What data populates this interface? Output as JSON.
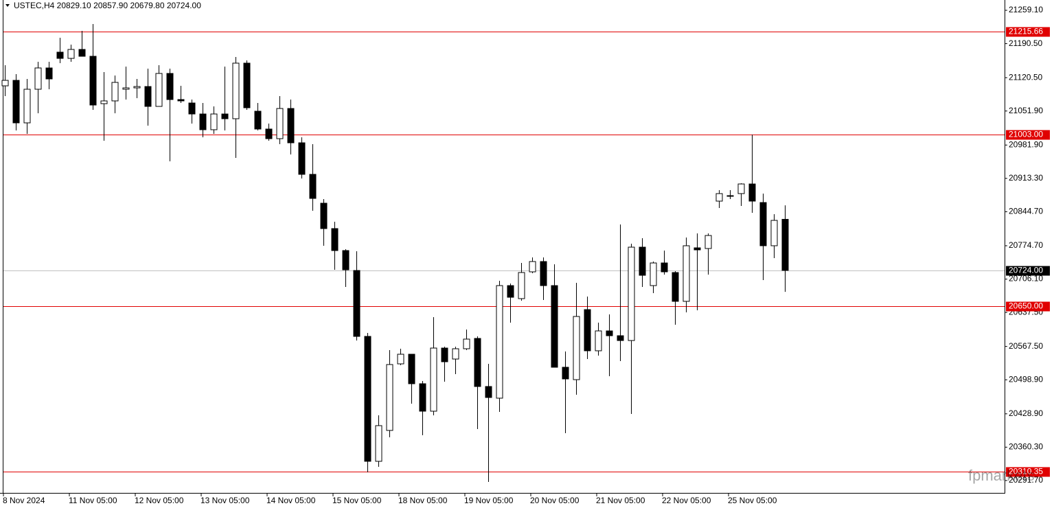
{
  "chart_data": {
    "type": "candlestick",
    "title": "USTEC,H4  20829.10 20857.90 20679.80 20724.00",
    "categories": [
      "8 Nov 2024",
      null,
      null,
      null,
      null,
      null,
      "11 Nov 05:00",
      null,
      null,
      null,
      null,
      null,
      "12 Nov 05:00",
      null,
      null,
      null,
      null,
      null,
      "13 Nov 05:00",
      null,
      null,
      null,
      null,
      null,
      "14 Nov 05:00",
      null,
      null,
      null,
      null,
      null,
      "15 Nov 05:00",
      null,
      null,
      null,
      null,
      null,
      "18 Nov 05:00",
      null,
      null,
      null,
      null,
      null,
      "19 Nov 05:00",
      null,
      null,
      null,
      null,
      null,
      "20 Nov 05:00",
      null,
      null,
      null,
      null,
      null,
      "21 Nov 05:00",
      null,
      null,
      null,
      null,
      null,
      "22 Nov 05:00",
      null,
      null,
      null,
      null,
      null,
      "25 Nov 05:00",
      null,
      null,
      null,
      null,
      null
    ],
    "open": [
      21103.7,
      21115.0,
      21027.5,
      21096.7,
      21140.5,
      21173.0,
      21160.2,
      21178.6,
      21164.5,
      21067.0,
      21072.7,
      21096.7,
      21099.5,
      21102.3,
      21061.4,
      21129.2,
      21075.5,
      21068.4,
      21045.8,
      21013.4,
      21045.8,
      21036.0,
      21150.4,
      21051.5,
      21014.8,
      20995.0,
      21057.1,
      20986.5,
      20921.6,
      20862.2,
      20810.0,
      20764.8,
      20723.8,
      20588.2,
      20331.2,
      20394.7,
      20531.7,
      20551.5,
      20490.8,
      20434.3,
      20564.2,
      20541.6,
      20562.8,
      20584.0,
      20485.1,
      20461.1,
      20692.7,
      20665.9,
      20721.0,
      20742.2,
      20692.7,
      20524.7,
      20499.2,
      20643.3,
      20558.6,
      20599.5,
      20589.6,
      20579.7,
      20771.8,
      20692.7,
      20739.3,
      20719.6,
      20660.3,
      20770.4,
      20769.0,
      20866.5,
      20876.4,
      20882.0,
      20901.8,
      20863.6,
      20774.7,
      20829.1
    ],
    "high": [
      21146.1,
      21127.8,
      21117.9,
      21153.2,
      21153.2,
      21202.6,
      21188.5,
      21216.7,
      21230.9,
      21132.0,
      21124.9,
      21143.3,
      21117.9,
      21139.1,
      21146.1,
      21139.1,
      21103.7,
      21075.5,
      21068.4,
      21061.4,
      21143.3,
      21163.1,
      21156.0,
      21068.4,
      21026.1,
      21082.6,
      21075.5,
      20997.8,
      20983.7,
      20870.7,
      20824.1,
      20767.6,
      20763.4,
      20595.3,
      20425.8,
      20560.0,
      20562.8,
      20551.5,
      20496.4,
      20627.8,
      20567.0,
      20567.0,
      20602.3,
      20588.2,
      20531.7,
      20702.6,
      20697.0,
      20739.3,
      20750.6,
      20750.6,
      20736.5,
      20557.2,
      20698.4,
      20670.1,
      20616.5,
      20633.4,
      20818.4,
      20778.9,
      20790.2,
      20742.2,
      20764.8,
      20722.4,
      20791.6,
      20800.1,
      20800.1,
      20889.1,
      20889.1,
      20903.2,
      21003.5,
      20882.0,
      20839.6,
      20857.9
    ],
    "low": [
      21082.6,
      21011.9,
      21004.9,
      21047.3,
      21096.7,
      21150.4,
      21153.2,
      21164.5,
      21054.3,
      20990.8,
      21047.3,
      21075.5,
      21078.3,
      21021.8,
      21061.4,
      20948.4,
      21068.4,
      21026.1,
      20997.8,
      21004.9,
      21011.9,
      20955.4,
      21054.3,
      21011.9,
      20990.8,
      20983.7,
      20962.5,
      20913.1,
      20846.7,
      20774.7,
      20725.2,
      20689.9,
      20579.7,
      20308.6,
      20319.9,
      20380.6,
      20528.9,
      20449.8,
      20384.8,
      20425.8,
      20495.0,
      20510.5,
      20560.0,
      20397.5,
      20288.8,
      20432.9,
      20616.5,
      20661.7,
      20718.2,
      20663.1,
      20524.7,
      20389.1,
      20468.2,
      20541.6,
      20548.7,
      20506.3,
      20537.4,
      20428.6,
      20689.9,
      20677.2,
      20715.3,
      20612.2,
      20637.7,
      20641.9,
      20715.3,
      20852.3,
      20870.7,
      20856.6,
      20842.5,
      20704.0,
      20749.2,
      20679.8
    ],
    "close": [
      21115.0,
      21027.5,
      21096.7,
      21140.5,
      21117.9,
      21160.2,
      21178.6,
      21164.5,
      21064.2,
      21072.7,
      21110.8,
      21099.5,
      21102.3,
      21061.4,
      21129.2,
      21075.5,
      21072.7,
      21045.8,
      21013.4,
      21045.8,
      21036.0,
      21150.4,
      21058.6,
      21014.8,
      20995.0,
      21057.1,
      20986.5,
      20921.6,
      20872.1,
      20810.0,
      20764.8,
      20725.2,
      20588.2,
      20331.2,
      20404.6,
      20530.3,
      20551.5,
      20490.8,
      20434.3,
      20564.2,
      20536.0,
      20562.8,
      20582.6,
      20485.1,
      20462.5,
      20692.7,
      20668.7,
      20719.6,
      20742.2,
      20692.7,
      20524.7,
      20500.7,
      20629.2,
      20558.6,
      20599.5,
      20589.6,
      20579.7,
      20771.8,
      20713.9,
      20739.3,
      20721.0,
      20660.3,
      20774.7,
      20766.2,
      20795.8,
      20882.0,
      20877.8,
      20901.8,
      20866.5,
      20774.7,
      20826.9,
      20724.0
    ],
    "up_color": "#ffffff",
    "down_color": "#000000",
    "wick_color": "#000000",
    "ylim": [
      20266.2,
      21280.3
    ],
    "yticks": [
      {
        "value": 21259.1,
        "label": "21259.10"
      },
      {
        "value": 21190.5,
        "label": "21190.50"
      },
      {
        "value": 21120.5,
        "label": "21120.50"
      },
      {
        "value": 21051.9,
        "label": "21051.90"
      },
      {
        "value": 20981.9,
        "label": "20981.90"
      },
      {
        "value": 20913.3,
        "label": "20913.30"
      },
      {
        "value": 20844.7,
        "label": "20844.70"
      },
      {
        "value": 20774.7,
        "label": "20774.70"
      },
      {
        "value": 20706.1,
        "label": "20706.10"
      },
      {
        "value": 20637.5,
        "label": "20637.50"
      },
      {
        "value": 20567.5,
        "label": "20567.50"
      },
      {
        "value": 20498.9,
        "label": "20498.90"
      },
      {
        "value": 20428.9,
        "label": "20428.90"
      },
      {
        "value": 20360.3,
        "label": "20360.30"
      },
      {
        "value": 20291.7,
        "label": "20291.70"
      }
    ],
    "levels": [
      {
        "value": 21215.66,
        "label": "21215.66"
      },
      {
        "value": 21003,
        "label": "21003.00"
      },
      {
        "value": 20650,
        "label": "20650.00"
      },
      {
        "value": 20310.35,
        "label": "20310.35"
      }
    ],
    "level_color": "#e00000",
    "current_price": {
      "value": 20724,
      "label": "20724.00"
    },
    "watermark": "fpmarkets"
  }
}
